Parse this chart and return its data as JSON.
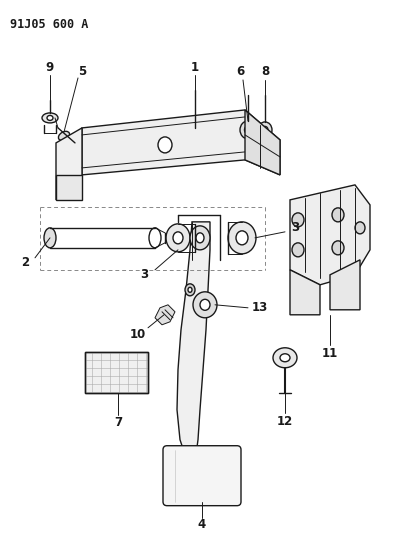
{
  "title": "91J05 600 A",
  "bg_color": "#ffffff",
  "line_color": "#1a1a1a",
  "fig_width": 3.99,
  "fig_height": 5.33,
  "dpi": 100,
  "label_fontsize": 8.5,
  "title_fontsize": 8.5
}
